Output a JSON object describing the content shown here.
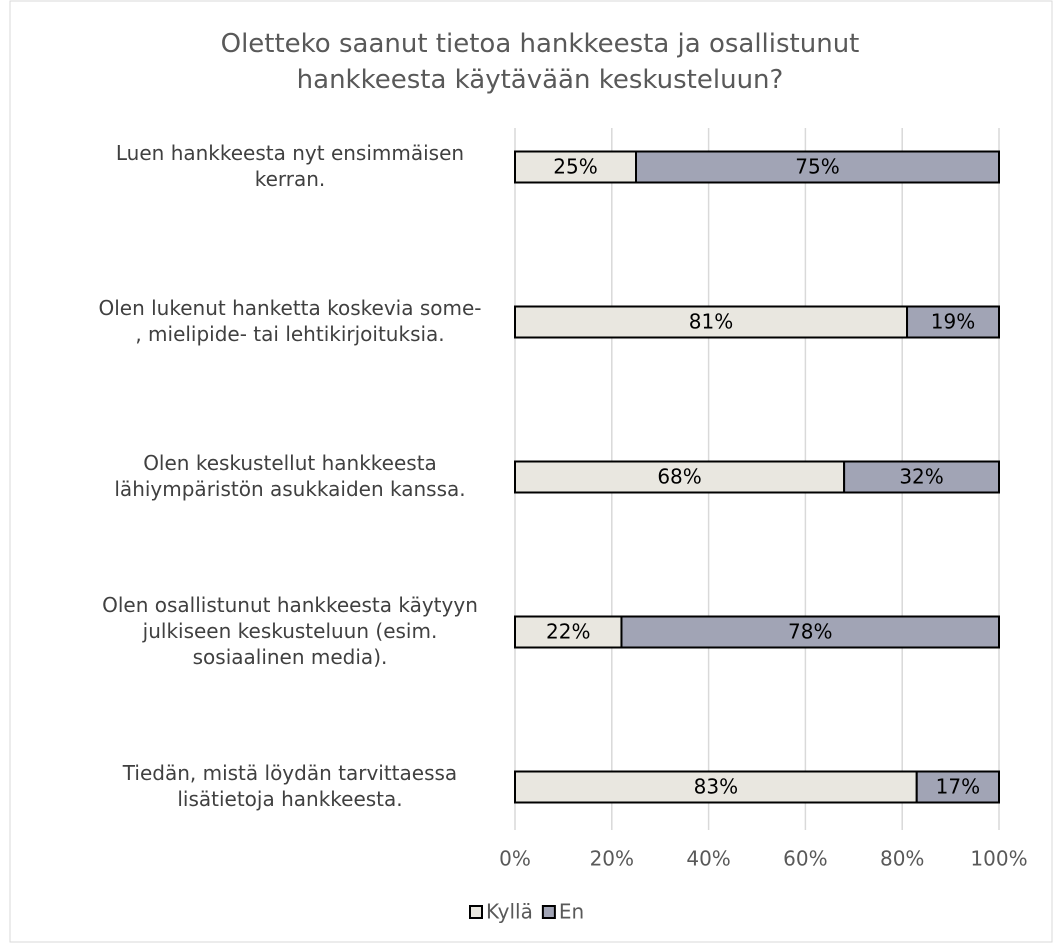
{
  "chart_data": {
    "type": "stacked_barh",
    "title": "Oletteko saanut tietoa hankkeesta ja osallistunut\nhankkeesta käytävään keskusteluun?",
    "categories": [
      "Luen hankkeesta nyt ensimmäisen\nkerran.",
      "Olen lukenut hanketta koskevia some-\n, mielipide- tai lehtikirjoituksia.",
      "Olen keskustellut hankkeesta\nlähiympäristön asukkaiden kanssa.",
      "Olen osallistunut hankkeesta käytyyn\njulkiseen keskusteluun (esim.\nsosiaalinen media).",
      "Tiedän, mistä löydän tarvittaessa\nlisätietoja hankkeesta."
    ],
    "series": [
      {
        "name": "Kyllä",
        "color": "#e9e7e0",
        "values": [
          25,
          81,
          68,
          22,
          83
        ],
        "value_labels": [
          "25%",
          "81%",
          "68%",
          "22%",
          "83%"
        ]
      },
      {
        "name": "En",
        "color": "#a1a4b5",
        "values": [
          75,
          19,
          32,
          78,
          17
        ],
        "value_labels": [
          "75%",
          "19%",
          "32%",
          "78%",
          "17%"
        ]
      }
    ],
    "xlim": [
      0,
      100
    ],
    "xticks": [
      {
        "value": 0,
        "label": "0%"
      },
      {
        "value": 20,
        "label": "20%"
      },
      {
        "value": 40,
        "label": "40%"
      },
      {
        "value": 60,
        "label": "60%"
      },
      {
        "value": 80,
        "label": "80%"
      },
      {
        "value": 100,
        "label": "100%"
      }
    ],
    "grid": true,
    "legend": "bottom"
  }
}
